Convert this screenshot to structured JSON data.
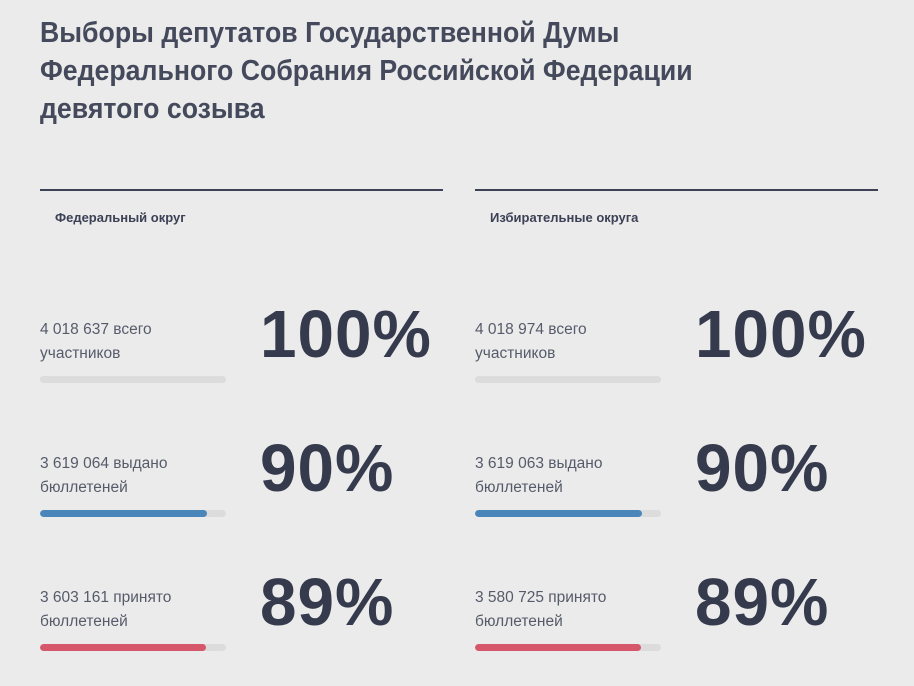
{
  "title": {
    "line1": "Выборы депутатов Государственной Думы",
    "line2": "Федерального Собрания Российской Федерации",
    "line3": "девятого созыва"
  },
  "colors": {
    "total": "#dcdcdc",
    "issued": "#4a86ba",
    "accepted": "#d6566a"
  },
  "columns": [
    {
      "heading": "Федеральный округ",
      "rows": [
        {
          "line1": "4 018 637 всего",
          "line2": "участников",
          "percent": "100%",
          "fill": 1.0
        },
        {
          "line1": "3 619 064 выдано",
          "line2": "бюллетеней",
          "percent": "90%",
          "fill": 0.9
        },
        {
          "line1": "3 603 161 принято",
          "line2": "бюллетеней",
          "percent": "89%",
          "fill": 0.89
        }
      ]
    },
    {
      "heading": "Избирательные округа",
      "rows": [
        {
          "line1": "4 018 974 всего",
          "line2": "участников",
          "percent": "100%",
          "fill": 1.0
        },
        {
          "line1": "3 619 063 выдано",
          "line2": "бюллетеней",
          "percent": "90%",
          "fill": 0.9
        },
        {
          "line1": "3 580 725 принято",
          "line2": "бюллетеней",
          "percent": "89%",
          "fill": 0.89
        }
      ]
    }
  ]
}
